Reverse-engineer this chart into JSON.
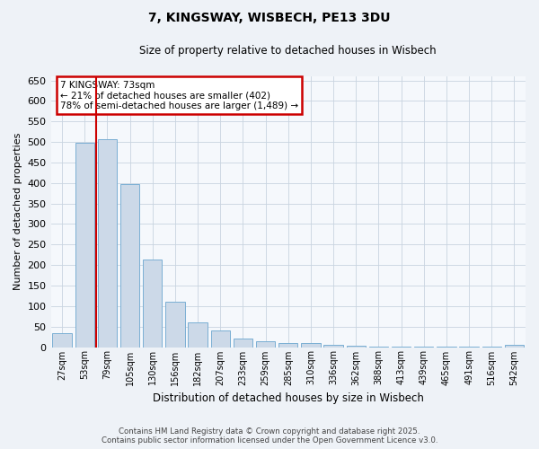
{
  "title": "7, KINGSWAY, WISBECH, PE13 3DU",
  "subtitle": "Size of property relative to detached houses in Wisbech",
  "xlabel": "Distribution of detached houses by size in Wisbech",
  "ylabel": "Number of detached properties",
  "categories": [
    "27sqm",
    "53sqm",
    "79sqm",
    "105sqm",
    "130sqm",
    "156sqm",
    "182sqm",
    "207sqm",
    "233sqm",
    "259sqm",
    "285sqm",
    "310sqm",
    "336sqm",
    "362sqm",
    "388sqm",
    "413sqm",
    "439sqm",
    "465sqm",
    "491sqm",
    "516sqm",
    "542sqm"
  ],
  "values": [
    35,
    497,
    507,
    397,
    213,
    110,
    60,
    40,
    20,
    15,
    10,
    10,
    5,
    3,
    2,
    2,
    1,
    1,
    1,
    1,
    5
  ],
  "bar_color": "#ccd9e8",
  "bar_edge_color": "#7aafd4",
  "background_color": "#eef2f7",
  "plot_bg_color": "#f5f8fc",
  "grid_color": "#c8d4e0",
  "red_line_x": 1.5,
  "annotation_title": "7 KINGSWAY: 73sqm",
  "annotation_line1": "← 21% of detached houses are smaller (402)",
  "annotation_line2": "78% of semi-detached houses are larger (1,489) →",
  "annotation_box_color": "#ffffff",
  "annotation_border_color": "#cc0000",
  "red_line_color": "#cc0000",
  "ylim": [
    0,
    660
  ],
  "yticks": [
    0,
    50,
    100,
    150,
    200,
    250,
    300,
    350,
    400,
    450,
    500,
    550,
    600,
    650
  ],
  "footnote1": "Contains HM Land Registry data © Crown copyright and database right 2025.",
  "footnote2": "Contains public sector information licensed under the Open Government Licence v3.0."
}
